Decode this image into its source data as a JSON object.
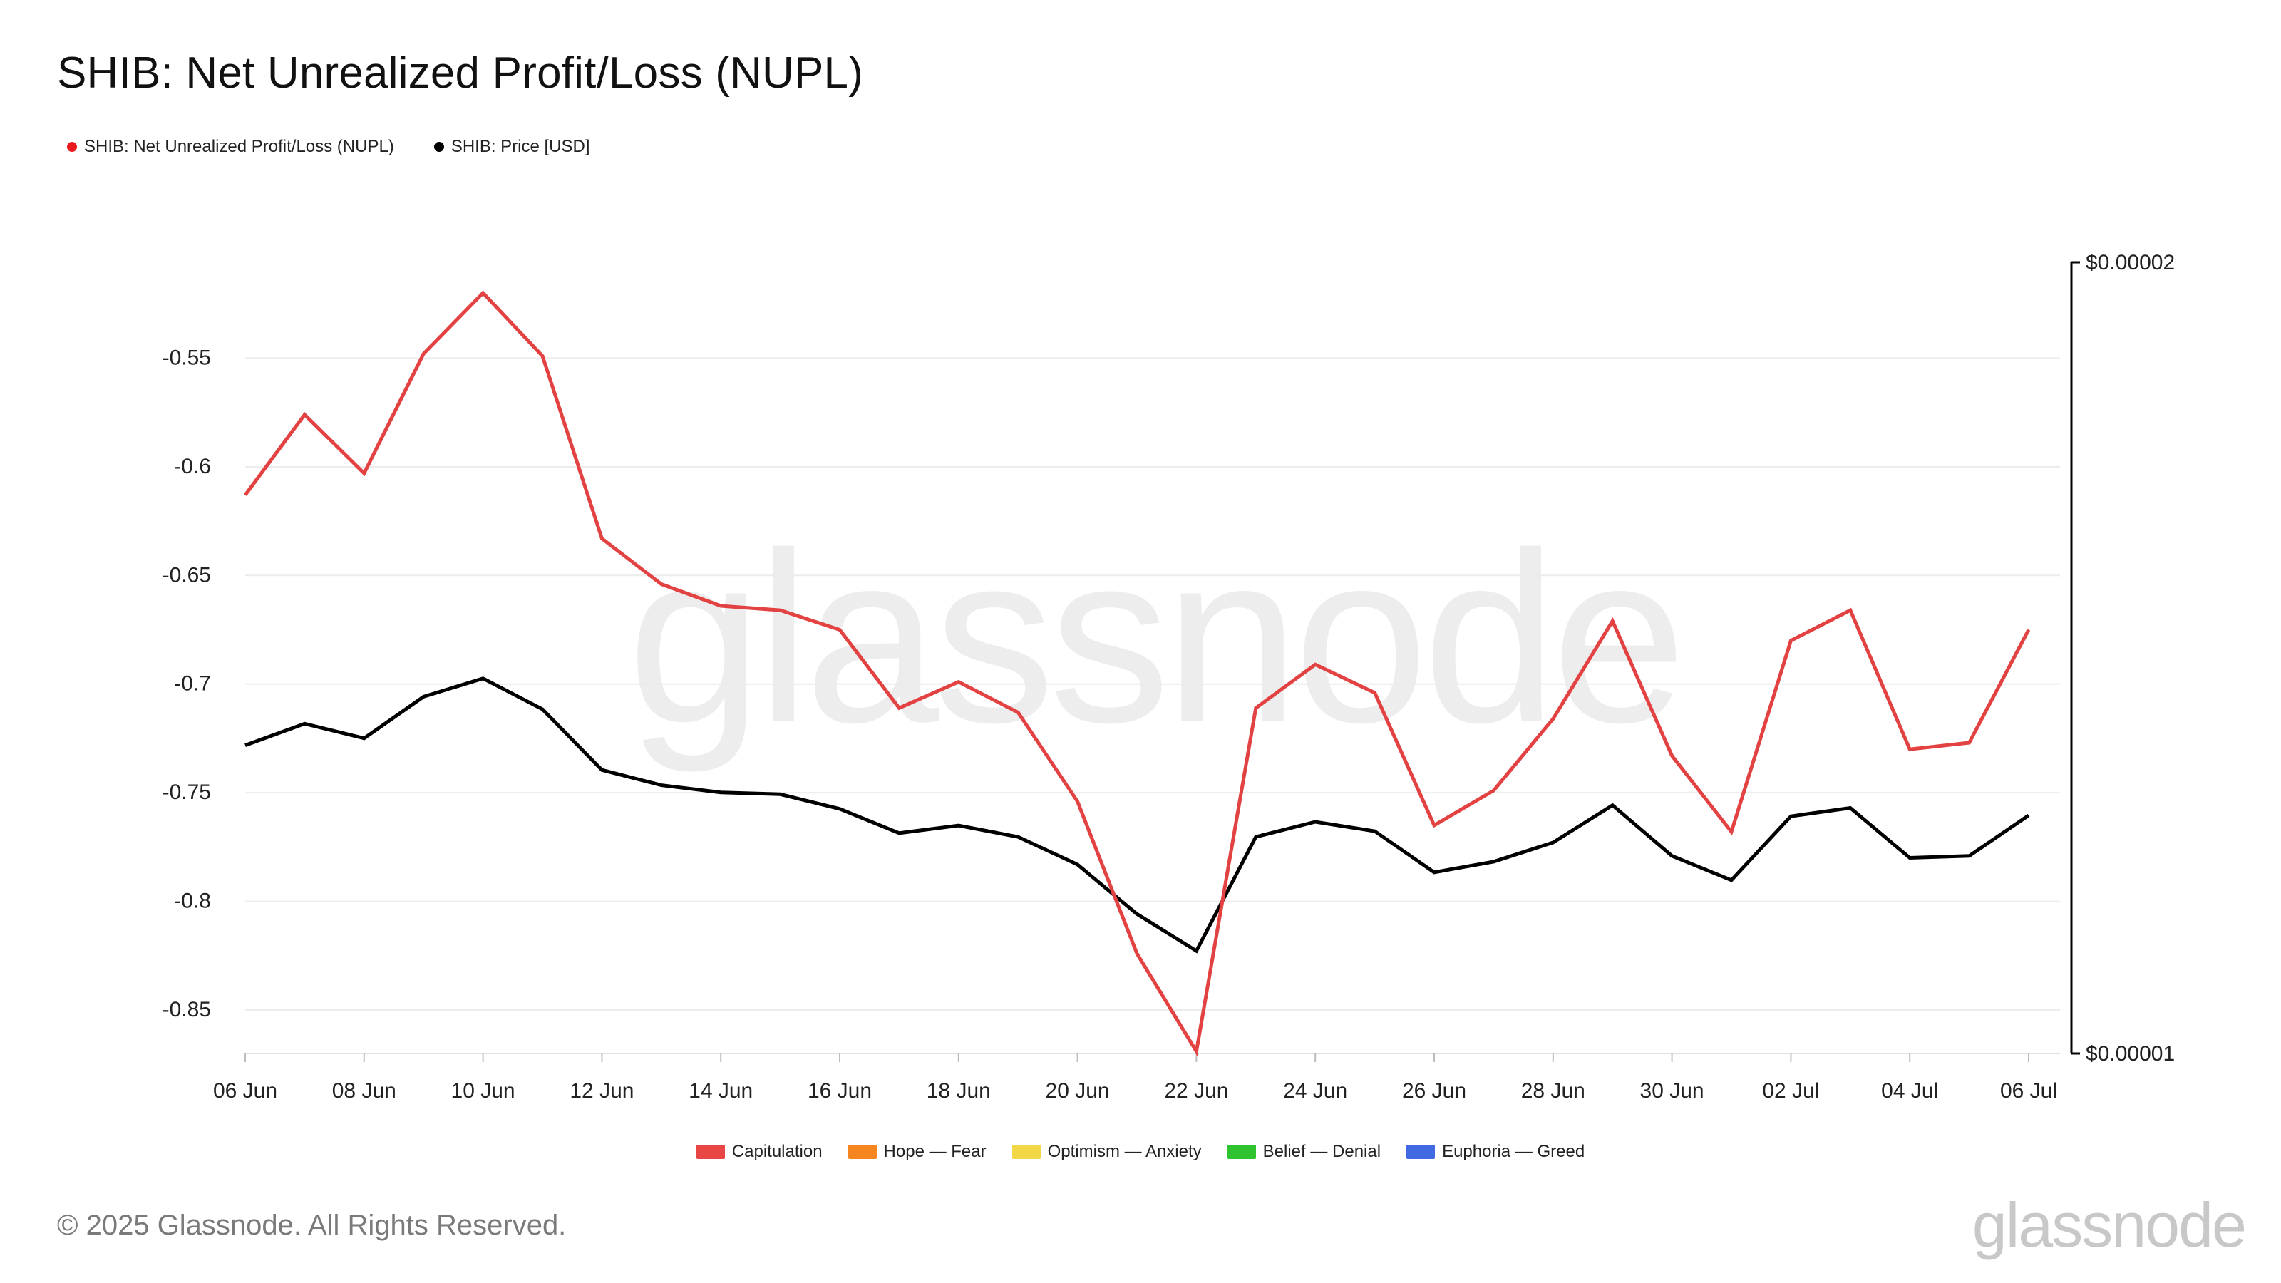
{
  "header": {
    "title": "SHIB: Net Unrealized Profit/Loss (NUPL)"
  },
  "legend_top": [
    {
      "label": "SHIB: Net Unrealized Profit/Loss (NUPL)",
      "color": "#e8191f"
    },
    {
      "label": "SHIB: Price [USD]",
      "color": "#000000"
    }
  ],
  "legend_bottom": [
    {
      "label": "Capitulation",
      "color": "#e84545"
    },
    {
      "label": "Hope — Fear",
      "color": "#f5851f"
    },
    {
      "label": "Optimism — Anxiety",
      "color": "#f2d746"
    },
    {
      "label": "Belief — Denial",
      "color": "#2fc42f"
    },
    {
      "label": "Euphoria — Greed",
      "color": "#4169e1"
    }
  ],
  "footer": {
    "copyright": "© 2025 Glassnode. All Rights Reserved.",
    "brand": "glassnode"
  },
  "watermark": "glassnode",
  "chart_data": {
    "type": "line",
    "title": "SHIB: Net Unrealized Profit/Loss (NUPL)",
    "x": [
      "06 Jun",
      "07 Jun",
      "08 Jun",
      "09 Jun",
      "10 Jun",
      "11 Jun",
      "12 Jun",
      "13 Jun",
      "14 Jun",
      "15 Jun",
      "16 Jun",
      "17 Jun",
      "18 Jun",
      "19 Jun",
      "20 Jun",
      "21 Jun",
      "22 Jun",
      "23 Jun",
      "24 Jun",
      "25 Jun",
      "26 Jun",
      "27 Jun",
      "28 Jun",
      "29 Jun",
      "30 Jun",
      "01 Jul",
      "02 Jul",
      "03 Jul",
      "04 Jul",
      "05 Jul",
      "06 Jul"
    ],
    "x_tick_labels": [
      "06 Jun",
      "08 Jun",
      "10 Jun",
      "12 Jun",
      "14 Jun",
      "16 Jun",
      "18 Jun",
      "20 Jun",
      "22 Jun",
      "24 Jun",
      "26 Jun",
      "28 Jun",
      "30 Jun",
      "02 Jul",
      "04 Jul",
      "06 Jul"
    ],
    "y_left": {
      "ticks": [
        -0.55,
        -0.6,
        -0.65,
        -0.7,
        -0.75,
        -0.8,
        -0.85
      ],
      "tick_labels": [
        "-0.55",
        "-0.6",
        "-0.65",
        "-0.7",
        "-0.75",
        "-0.8",
        "-0.85"
      ],
      "range": [
        -0.87,
        -0.5
      ],
      "grid": true
    },
    "y_right": {
      "scale": "log",
      "tick_labels": [
        "$0.00002",
        "$0.00001"
      ],
      "ticks": [
        2e-05,
        1e-05
      ],
      "range": [
        1e-05,
        2e-05
      ]
    },
    "series": [
      {
        "name": "SHIB: Net Unrealized Profit/Loss (NUPL)",
        "color": "#e34242",
        "axis": "left",
        "values": [
          -0.613,
          -0.576,
          -0.603,
          -0.548,
          -0.52,
          -0.549,
          -0.633,
          -0.654,
          -0.664,
          -0.666,
          -0.675,
          -0.711,
          -0.699,
          -0.713,
          -0.754,
          -0.824,
          -0.869,
          -0.711,
          -0.691,
          -0.704,
          -0.765,
          -0.749,
          -0.716,
          -0.671,
          -0.733,
          -0.768,
          -0.68,
          -0.666,
          -0.73,
          -0.727,
          -0.675
        ]
      },
      {
        "name": "SHIB: Price [USD]",
        "color": "#000000",
        "axis": "right",
        "values": [
          1.31e-05,
          1.335e-05,
          1.318e-05,
          1.367e-05,
          1.389e-05,
          1.352e-05,
          1.282e-05,
          1.265e-05,
          1.257e-05,
          1.255e-05,
          1.239e-05,
          1.213e-05,
          1.221e-05,
          1.209e-05,
          1.18e-05,
          1.13e-05,
          1.094e-05,
          1.209e-05,
          1.225e-05,
          1.215e-05,
          1.172e-05,
          1.183e-05,
          1.203e-05,
          1.243e-05,
          1.189e-05,
          1.164e-05,
          1.231e-05,
          1.24e-05,
          1.187e-05,
          1.189e-05,
          1.232e-05
        ]
      }
    ],
    "legend": "top-left"
  }
}
